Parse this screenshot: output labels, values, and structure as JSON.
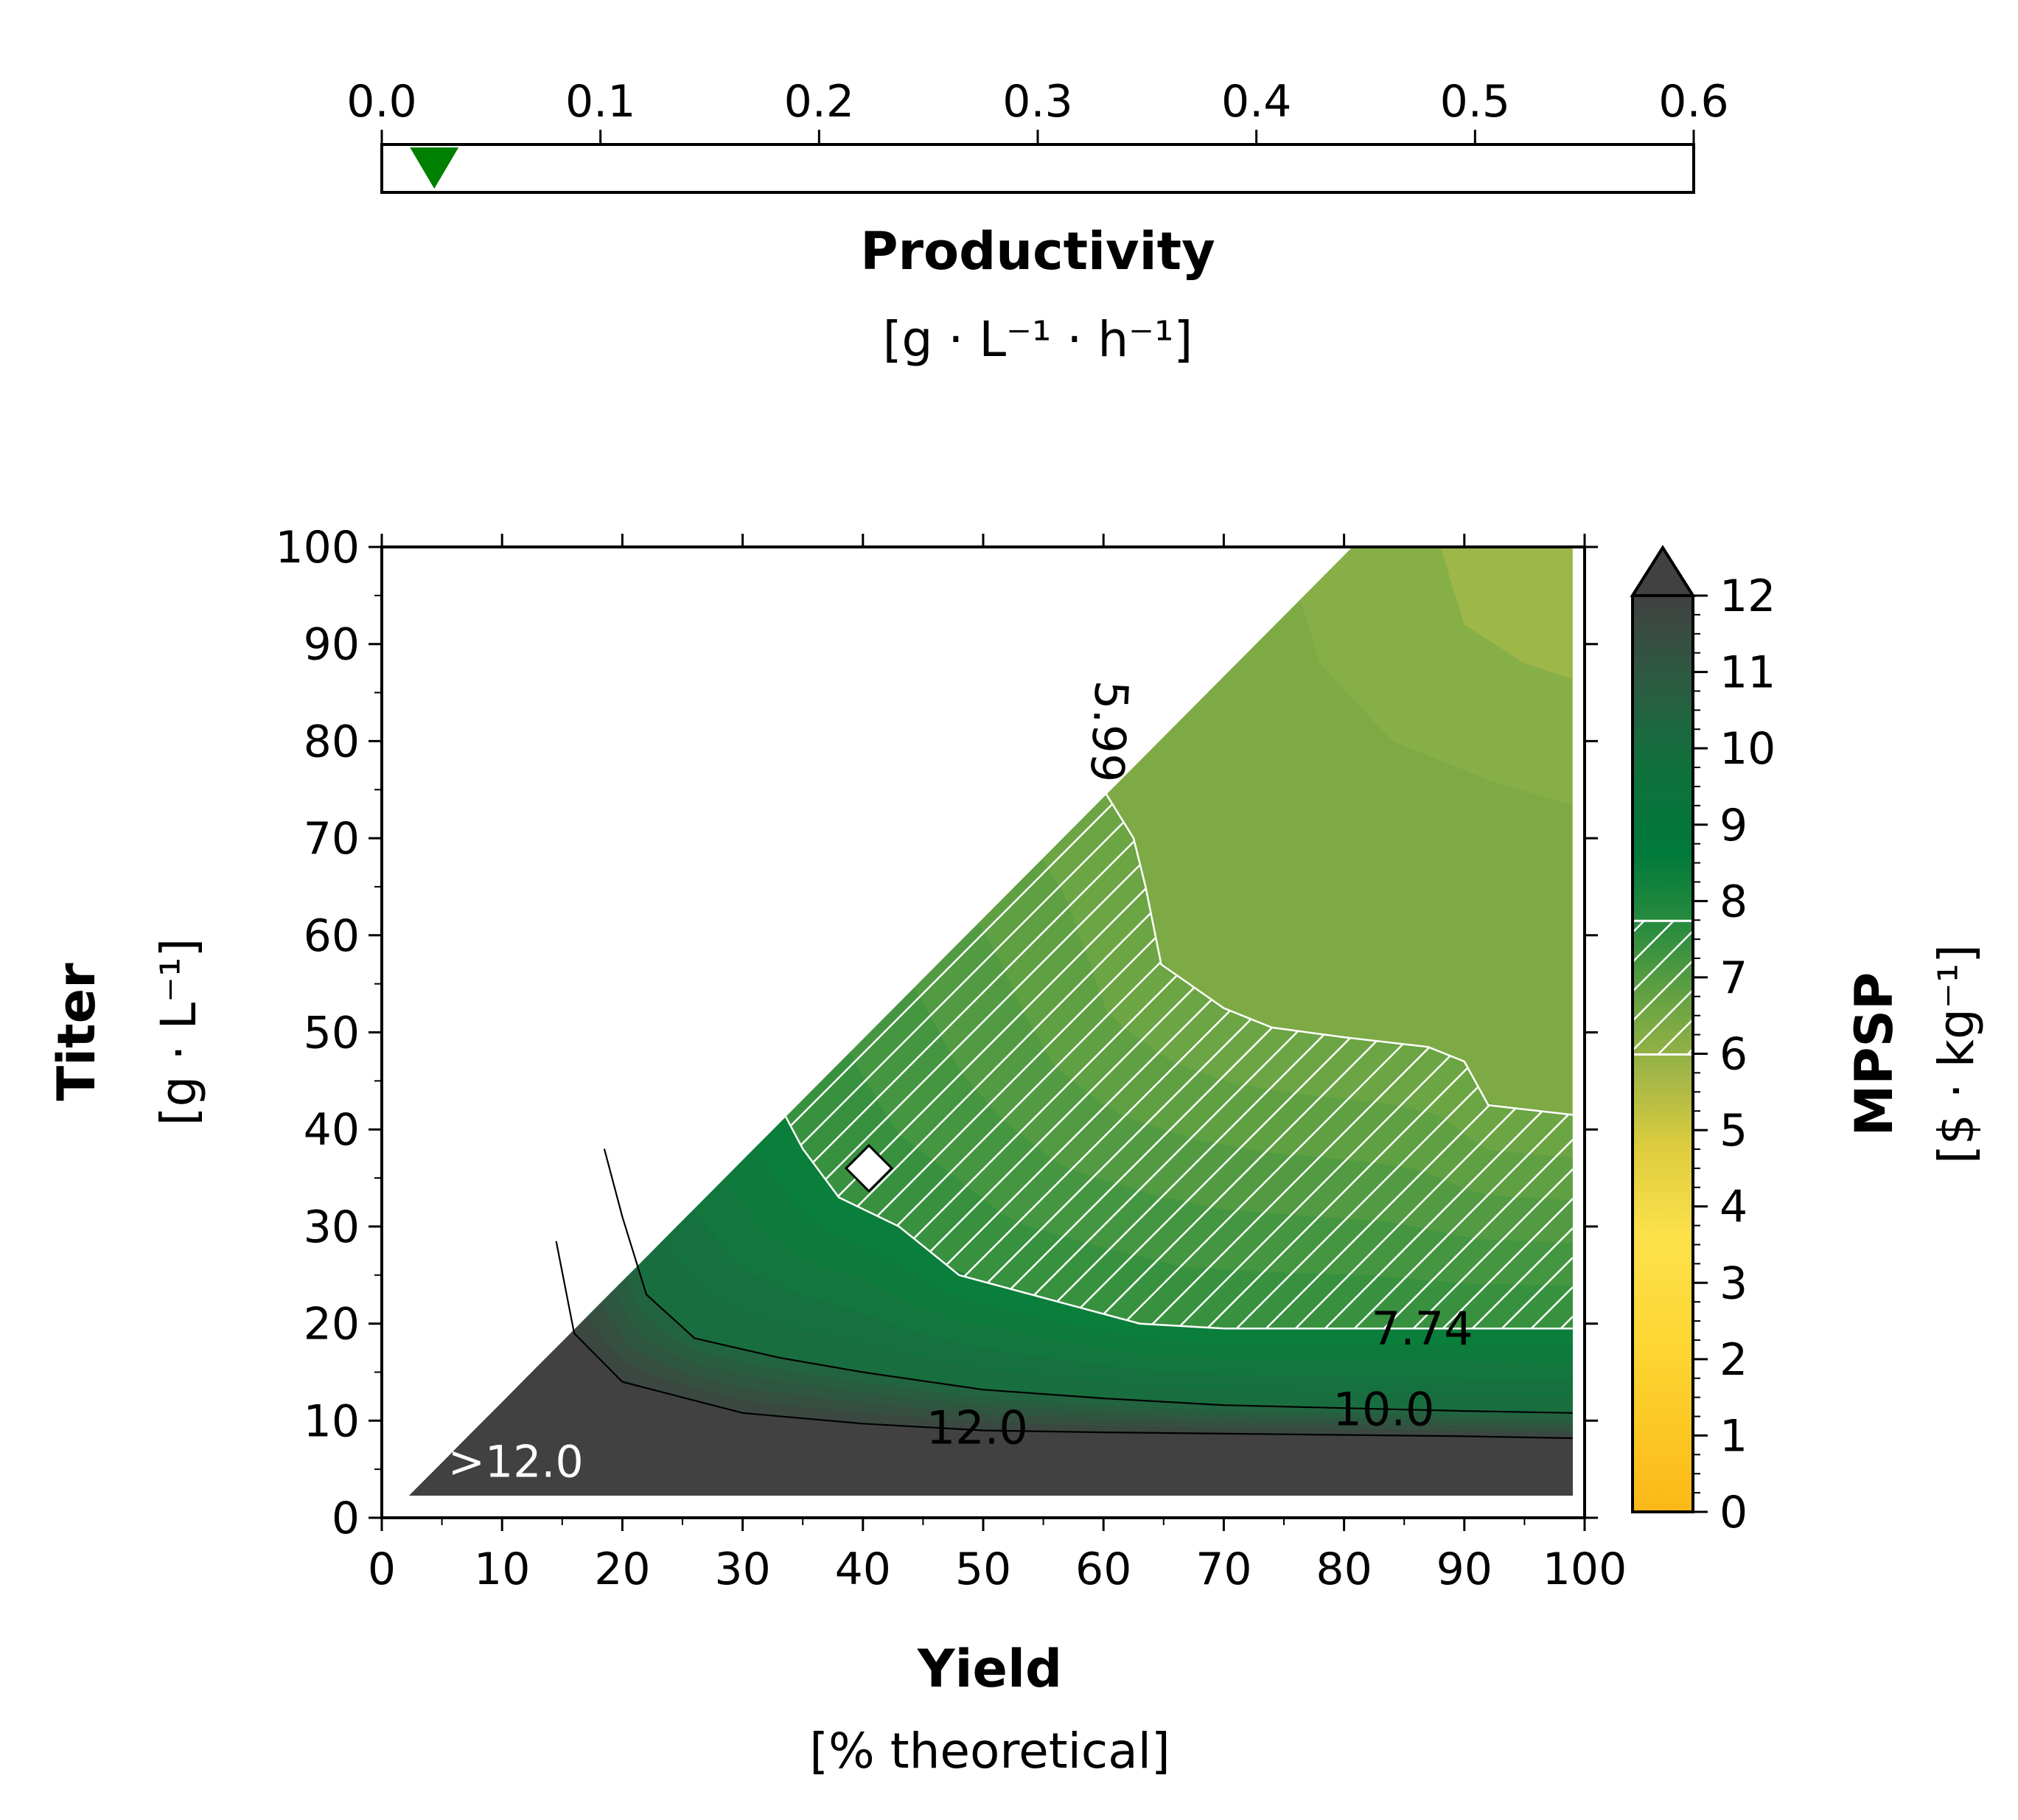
{
  "chart_data": [
    {
      "type": "axis-indicator",
      "title": "Productivity",
      "unit": "[g · L⁻¹ · h⁻¹]",
      "xlim": [
        0.0,
        0.6
      ],
      "ticks": [
        "0.0",
        "0.1",
        "0.2",
        "0.3",
        "0.4",
        "0.5",
        "0.6"
      ],
      "marker": {
        "value": 0.024,
        "shape": "triangle-down",
        "color": "#008000"
      }
    },
    {
      "type": "heatmap",
      "xlabel": "Yield",
      "xunit": "[% theoretical]",
      "ylabel": "Titer",
      "yunit": "[g · L⁻¹]",
      "xlim": [
        0,
        100
      ],
      "ylim": [
        0,
        100
      ],
      "xticks": [
        "0",
        "10",
        "20",
        "30",
        "40",
        "50",
        "60",
        "70",
        "80",
        "90",
        "100"
      ],
      "yticks": [
        "0",
        "10",
        "20",
        "30",
        "40",
        "50",
        "60",
        "70",
        "80",
        "90",
        "100"
      ],
      "feasible_region": [
        [
          2.3,
          2.3
        ],
        [
          80.7,
          100
        ],
        [
          99,
          100
        ],
        [
          99,
          2.3
        ]
      ],
      "contours": [
        {
          "label": "12.0",
          "color": "#000000",
          "points": [
            [
              14.5,
              28.5
            ],
            [
              16,
              19
            ],
            [
              20,
              14
            ],
            [
              30,
              10.8
            ],
            [
              40,
              9.7
            ],
            [
              50,
              9.0
            ],
            [
              60,
              8.8
            ],
            [
              75,
              8.6
            ],
            [
              90,
              8.4
            ],
            [
              99,
              8.2
            ]
          ],
          "label_pos": [
            49.5,
            9.3
          ]
        },
        {
          "label": "10.0",
          "color": "#000000",
          "points": [
            [
              18.5,
              38
            ],
            [
              20,
              31
            ],
            [
              22,
              23
            ],
            [
              26,
              18.5
            ],
            [
              33,
              16.5
            ],
            [
              40,
              15
            ],
            [
              50,
              13.2
            ],
            [
              60,
              12.3
            ],
            [
              70,
              11.6
            ],
            [
              80,
              11.3
            ],
            [
              90,
              11.0
            ],
            [
              99,
              10.8
            ]
          ],
          "label_pos": [
            83.3,
            11.2
          ]
        },
        {
          "label": "7.74",
          "color": "#ffffff",
          "points": [
            [
              29.5,
              60.5
            ],
            [
              30.5,
              55
            ],
            [
              32,
              45
            ],
            [
              35,
              38
            ],
            [
              38,
              33
            ],
            [
              43,
              30
            ],
            [
              48,
              25
            ],
            [
              57,
              22
            ],
            [
              63,
              20
            ],
            [
              70,
              19.5
            ],
            [
              80,
              19.5
            ],
            [
              90,
              19.5
            ],
            [
              99,
              19.5
            ]
          ],
          "label_pos": [
            86.5,
            19.5
          ]
        },
        {
          "label": "5.99",
          "color": "#ffffff",
          "points": [
            [
              58,
              100
            ],
            [
              59,
              90
            ],
            [
              60,
              75
            ],
            [
              62.5,
              70
            ],
            [
              63.5,
              65
            ],
            [
              64.8,
              57
            ],
            [
              70,
              52.5
            ],
            [
              74,
              50.5
            ],
            [
              80,
              49.5
            ],
            [
              87,
              48.5
            ],
            [
              90,
              47
            ],
            [
              92,
              42.5
            ],
            [
              99,
              41.5
            ]
          ],
          "label_pos": [
            60.5,
            81
          ]
        }
      ],
      "hatched_band": [
        7.74,
        5.99
      ],
      "annotation": ">12.0",
      "marker": {
        "x": 40.5,
        "y": 36,
        "shape": "diamond",
        "color": "#ffffff"
      }
    },
    {
      "type": "colorbar",
      "title": "MPSP",
      "unit": "[$ · kg⁻¹]",
      "range": [
        0,
        12
      ],
      "ticks": [
        "0",
        "1",
        "2",
        "3",
        "4",
        "5",
        "6",
        "7",
        "8",
        "9",
        "10",
        "11",
        "12"
      ],
      "extend": "max",
      "hatched_range": [
        5.99,
        7.74
      ],
      "colors": [
        "#fbb818",
        "#fddd3f",
        "#bbc03c",
        "#7eaa45",
        "#3e9443",
        "#007b3c",
        "#1e6a41",
        "#414141"
      ]
    }
  ]
}
